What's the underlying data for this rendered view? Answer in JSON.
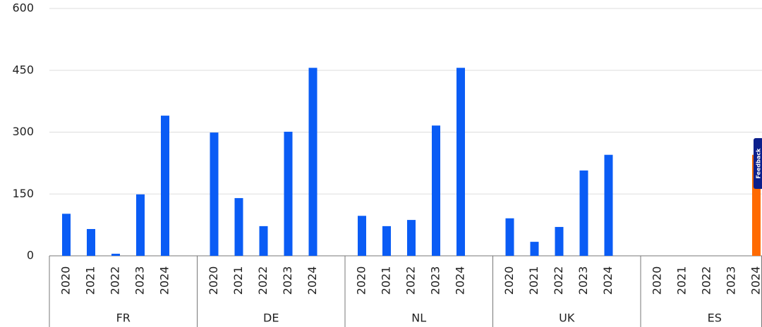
{
  "chart_data": {
    "type": "bar",
    "ylim": [
      0,
      600
    ],
    "yticks": [
      0,
      150,
      300,
      450,
      600
    ],
    "grid": true,
    "groups": [
      {
        "name": "FR",
        "color": "#0a5cf5",
        "categories": [
          "2020",
          "2021",
          "2022",
          "2023",
          "2024"
        ],
        "values": [
          102,
          65,
          5,
          149,
          340
        ]
      },
      {
        "name": "DE",
        "color": "#0a5cf5",
        "categories": [
          "2020",
          "2021",
          "2022",
          "2023",
          "2024"
        ],
        "values": [
          299,
          140,
          72,
          301,
          456
        ]
      },
      {
        "name": "NL",
        "color": "#0a5cf5",
        "categories": [
          "2020",
          "2021",
          "2022",
          "2023",
          "2024"
        ],
        "values": [
          97,
          72,
          87,
          316,
          456
        ]
      },
      {
        "name": "UK",
        "color": "#0a5cf5",
        "categories": [
          "2020",
          "2021",
          "2022",
          "2023",
          "2024"
        ],
        "values": [
          91,
          34,
          70,
          207,
          245
        ]
      },
      {
        "name": "ES",
        "color": "#ff6a00",
        "categories": [
          "2020",
          "2021",
          "2022",
          "2023",
          "2024"
        ],
        "values": [
          null,
          null,
          null,
          null,
          245
        ]
      }
    ]
  },
  "feedback": "Feedback"
}
